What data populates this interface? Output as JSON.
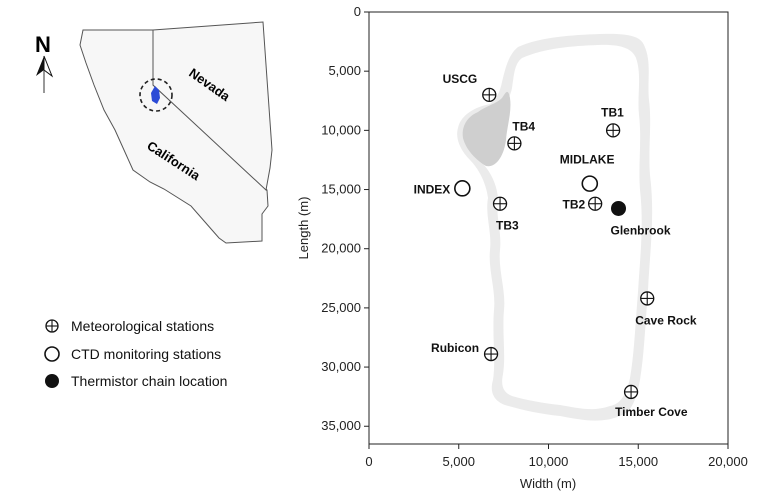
{
  "inset_map": {
    "north_label": "N",
    "state_labels": [
      "Nevada",
      "California"
    ]
  },
  "legend": {
    "items": [
      {
        "symbol": "meteorological",
        "label": "Meteorological stations"
      },
      {
        "symbol": "ctd",
        "label": "CTD monitoring stations"
      },
      {
        "symbol": "thermistor",
        "label": "Thermistor chain location"
      }
    ]
  },
  "chart_data": {
    "type": "scatter",
    "xlabel": "Width (m)",
    "ylabel": "Length (m)",
    "xlim": [
      0,
      20000
    ],
    "ylim": [
      0,
      36500
    ],
    "y_inverted": true,
    "x_ticks": [
      "0",
      "5,000",
      "10,000",
      "15,000",
      "20,000"
    ],
    "y_ticks": [
      "0",
      "5,000",
      "10,000",
      "15,000",
      "20,000",
      "25,000",
      "30,000",
      "35,000"
    ],
    "stations": [
      {
        "name": "USCG",
        "type": "meteorological",
        "x": 6700,
        "y": 7000
      },
      {
        "name": "TB1",
        "type": "meteorological",
        "x": 13600,
        "y": 10000
      },
      {
        "name": "TB4",
        "type": "meteorological",
        "x": 8100,
        "y": 11100
      },
      {
        "name": "MIDLAKE",
        "type": "ctd",
        "x": 12300,
        "y": 14500
      },
      {
        "name": "INDEX",
        "type": "ctd",
        "x": 5200,
        "y": 14900
      },
      {
        "name": "TB3",
        "type": "meteorological",
        "x": 7300,
        "y": 16200
      },
      {
        "name": "TB2",
        "type": "meteorological",
        "x": 12600,
        "y": 16200
      },
      {
        "name": "Glenbrook",
        "type": "thermistor",
        "x": 13900,
        "y": 16600
      },
      {
        "name": "Cave Rock",
        "type": "meteorological",
        "x": 15500,
        "y": 24200
      },
      {
        "name": "Rubicon",
        "type": "meteorological",
        "x": 6800,
        "y": 28900
      },
      {
        "name": "Timber Cove",
        "type": "meteorological",
        "x": 14600,
        "y": 32100
      }
    ]
  }
}
